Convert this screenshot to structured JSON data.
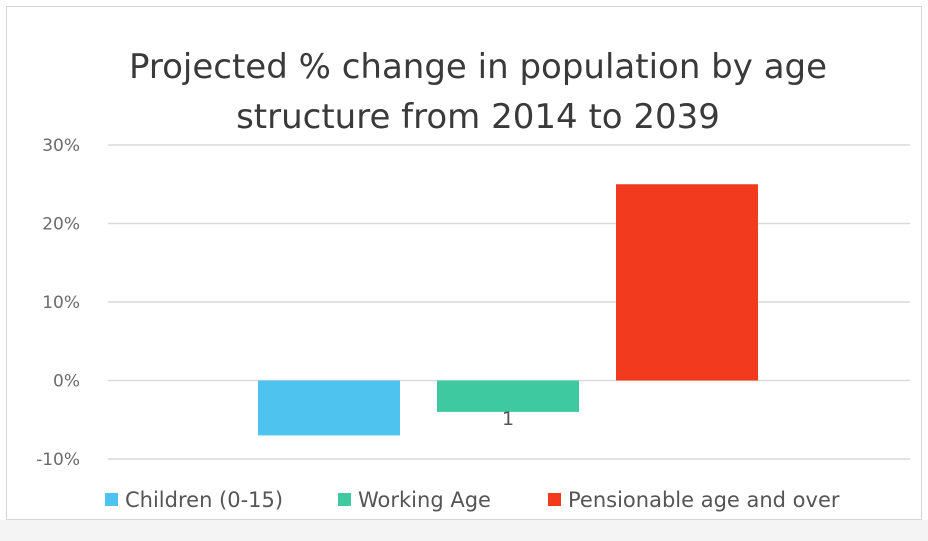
{
  "chart_data": {
    "type": "bar",
    "title": "Projected % change in population by age structure from 2014 to 2039",
    "title_lines": [
      "Projected % change in population by age",
      "structure from 2014 to 2039"
    ],
    "categories": [
      "1"
    ],
    "series": [
      {
        "name": "Children (0-15)",
        "values": [
          -7
        ],
        "color": "#4fc3f0"
      },
      {
        "name": "Working Age",
        "values": [
          -4
        ],
        "color": "#3ec9a0"
      },
      {
        "name": "Pensionable age and over",
        "values": [
          25
        ],
        "color": "#f23b1e"
      }
    ],
    "ylim": [
      -10,
      30
    ],
    "yticks": [
      -10,
      0,
      10,
      20,
      30
    ],
    "ytick_labels": [
      "-10%",
      "0%",
      "10%",
      "20%",
      "30%"
    ],
    "xlabel": "",
    "ylabel": "",
    "grid": true,
    "legend_position": "bottom"
  }
}
